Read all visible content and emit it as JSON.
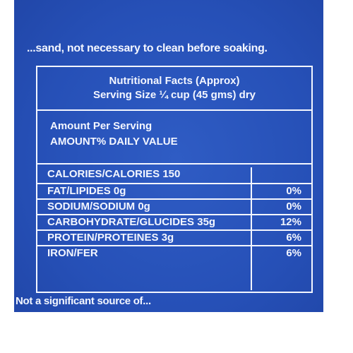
{
  "package": {
    "top_text": "...sand, not necessary to clean before soaking.",
    "bottom_text": "Not a significant source of..."
  },
  "facts": {
    "title": "Nutritional Facts (Approx)",
    "serving": "Serving Size ¼ cup (45 gms) dry",
    "amount_per_serving": "Amount Per Serving",
    "daily_value_header": "AMOUNT% DAILY VALUE",
    "rows": [
      {
        "label": "CALORIES/CALORIES 150",
        "pct": ""
      },
      {
        "label": "FAT/LIPIDES 0g",
        "pct": "0%"
      },
      {
        "label": "SODIUM/SODIUM 0g",
        "pct": "0%"
      },
      {
        "label": "CARBOHYDRATE/GLUCIDES 35g",
        "pct": "12%"
      },
      {
        "label": "PROTEIN/PROTEINES 3g",
        "pct": "6%"
      },
      {
        "label": "IRON/FER",
        "pct": "6%"
      }
    ]
  }
}
